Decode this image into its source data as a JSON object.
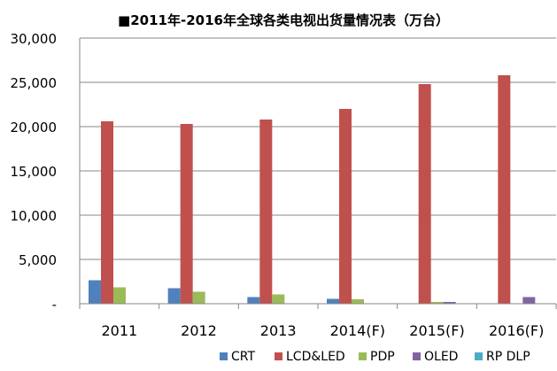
{
  "chart_data": {
    "type": "bar",
    "title": "■2011年-2016年全球各类电视出货量情况表（万台）",
    "xlabel": "",
    "ylabel": "",
    "categories": [
      "2011",
      "2012",
      "2013",
      "2014(F)",
      "2015(F)",
      "2016(F)"
    ],
    "ylim": [
      0,
      30000
    ],
    "yticks": [
      0,
      5000,
      10000,
      15000,
      20000,
      25000,
      30000
    ],
    "ytick_labels": [
      "-",
      "5,000",
      "10,000",
      "15,000",
      "20,000",
      "25,000",
      "30,000"
    ],
    "grid": "horizontal",
    "legend_position": "bottom",
    "series": [
      {
        "name": "CRT",
        "color": "#4f81bd",
        "values": [
          2650,
          1750,
          750,
          550,
          0,
          0
        ]
      },
      {
        "name": "LCD&LED",
        "color": "#c0504d",
        "values": [
          20600,
          20300,
          20800,
          22000,
          24800,
          25800
        ]
      },
      {
        "name": "PDP",
        "color": "#9bbb59",
        "values": [
          1850,
          1350,
          1050,
          500,
          200,
          0
        ]
      },
      {
        "name": "OLED",
        "color": "#8064a2",
        "values": [
          0,
          0,
          0,
          0,
          200,
          750
        ]
      },
      {
        "name": "RP DLP",
        "color": "#4bacc6",
        "values": [
          0,
          0,
          0,
          0,
          0,
          0
        ]
      }
    ]
  }
}
